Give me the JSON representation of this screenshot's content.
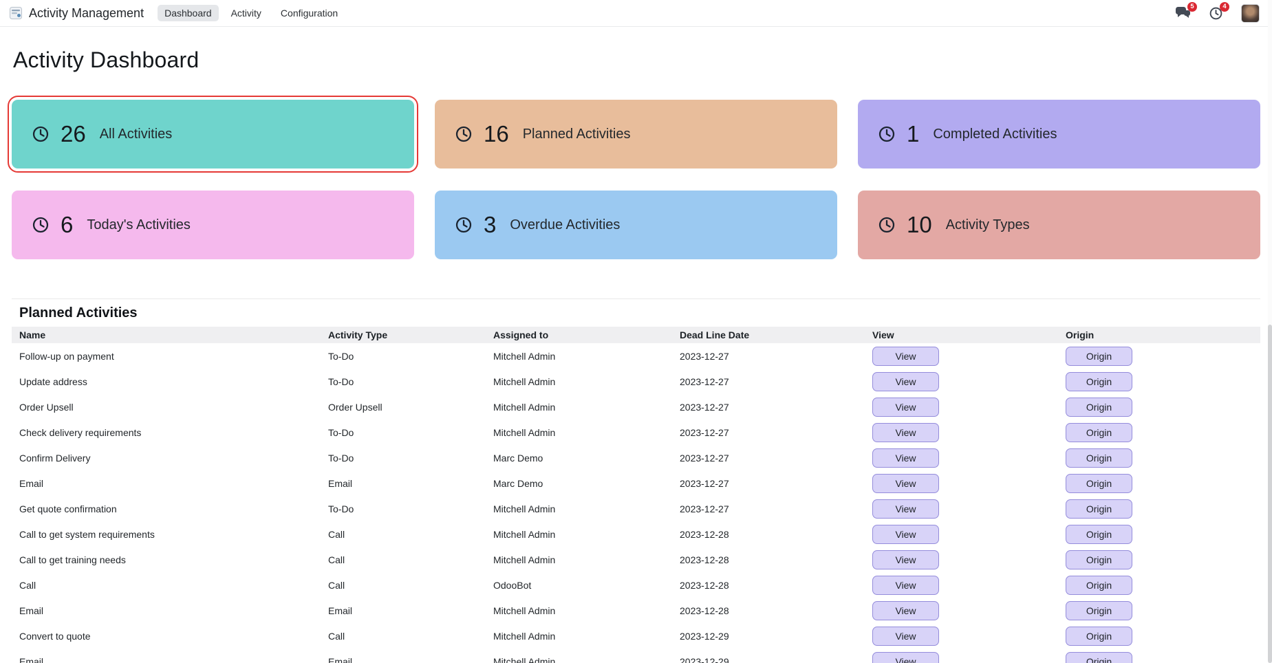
{
  "topbar": {
    "app_title": "Activity Management",
    "menu": [
      {
        "label": "Dashboard",
        "active": true
      },
      {
        "label": "Activity",
        "active": false
      },
      {
        "label": "Configuration",
        "active": false
      }
    ],
    "messages_badge": "5",
    "activities_badge": "4"
  },
  "page": {
    "title": "Activity Dashboard"
  },
  "cards": [
    {
      "count": "26",
      "label": "All Activities",
      "bg": "#6fd4cc",
      "highlighted": true
    },
    {
      "count": "16",
      "label": "Planned Activities",
      "bg": "#e8bd9b",
      "highlighted": false
    },
    {
      "count": "1",
      "label": "Completed Activities",
      "bg": "#b2aaf0",
      "highlighted": false
    },
    {
      "count": "6",
      "label": "Today's Activities",
      "bg": "#f5b9ed",
      "highlighted": false
    },
    {
      "count": "3",
      "label": "Overdue Activities",
      "bg": "#9bc9f1",
      "highlighted": false
    },
    {
      "count": "10",
      "label": "Activity Types",
      "bg": "#e3a8a4",
      "highlighted": false
    }
  ],
  "colors": {
    "highlight_border": "#e53935",
    "badge": "#da2832",
    "button_bg": "#d8d3f8",
    "button_border": "#948cdb"
  },
  "table": {
    "section_title": "Planned Activities",
    "columns": [
      "Name",
      "Activity Type",
      "Assigned to",
      "Dead Line Date",
      "View",
      "Origin"
    ],
    "view_label": "View",
    "origin_label": "Origin",
    "rows": [
      [
        "Follow-up on payment",
        "To-Do",
        "Mitchell Admin",
        "2023-12-27"
      ],
      [
        "Update address",
        "To-Do",
        "Mitchell Admin",
        "2023-12-27"
      ],
      [
        "Order Upsell",
        "Order Upsell",
        "Mitchell Admin",
        "2023-12-27"
      ],
      [
        "Check delivery requirements",
        "To-Do",
        "Mitchell Admin",
        "2023-12-27"
      ],
      [
        "Confirm Delivery",
        "To-Do",
        "Marc Demo",
        "2023-12-27"
      ],
      [
        "Email",
        "Email",
        "Marc Demo",
        "2023-12-27"
      ],
      [
        "Get quote confirmation",
        "To-Do",
        "Mitchell Admin",
        "2023-12-27"
      ],
      [
        "Call to get system requirements",
        "Call",
        "Mitchell Admin",
        "2023-12-28"
      ],
      [
        "Call to get training needs",
        "Call",
        "Mitchell Admin",
        "2023-12-28"
      ],
      [
        "Call",
        "Call",
        "OdooBot",
        "2023-12-28"
      ],
      [
        "Email",
        "Email",
        "Mitchell Admin",
        "2023-12-28"
      ],
      [
        "Convert to quote",
        "Call",
        "Mitchell Admin",
        "2023-12-29"
      ],
      [
        "Email",
        "Email",
        "Mitchell Admin",
        "2023-12-29"
      ]
    ]
  }
}
